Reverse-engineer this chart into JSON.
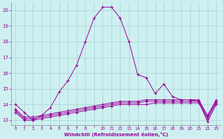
{
  "xlabel": "Windchill (Refroidissement éolien,°C)",
  "background_color": "#cff0f0",
  "grid_color": "#b0dede",
  "line_color": "#990099",
  "x_hours": [
    0,
    1,
    2,
    3,
    4,
    5,
    6,
    7,
    8,
    9,
    10,
    11,
    12,
    13,
    14,
    15,
    16,
    17,
    18,
    19,
    20,
    21,
    22,
    23
  ],
  "line1": [
    14.0,
    13.5,
    13.0,
    13.3,
    13.8,
    14.8,
    15.5,
    16.5,
    18.0,
    19.5,
    20.2,
    20.2,
    19.5,
    18.0,
    15.9,
    15.7,
    14.7,
    15.3,
    14.5,
    14.3,
    14.3,
    14.2,
    12.9,
    14.0
  ],
  "line2": [
    13.5,
    13.0,
    13.0,
    13.1,
    13.2,
    13.3,
    13.4,
    13.5,
    13.6,
    13.7,
    13.8,
    13.9,
    14.0,
    14.0,
    14.0,
    14.0,
    14.1,
    14.1,
    14.1,
    14.1,
    14.1,
    14.1,
    13.1,
    14.1
  ],
  "line3": [
    13.6,
    13.1,
    13.1,
    13.2,
    13.3,
    13.4,
    13.5,
    13.6,
    13.7,
    13.8,
    13.9,
    14.0,
    14.1,
    14.1,
    14.1,
    14.2,
    14.2,
    14.2,
    14.2,
    14.2,
    14.2,
    14.2,
    13.2,
    14.2
  ],
  "line4": [
    13.7,
    13.2,
    13.2,
    13.3,
    13.4,
    13.5,
    13.6,
    13.7,
    13.8,
    13.9,
    14.0,
    14.1,
    14.2,
    14.2,
    14.2,
    14.3,
    14.3,
    14.3,
    14.3,
    14.3,
    14.3,
    14.3,
    13.3,
    14.3
  ],
  "ylim": [
    12.7,
    20.5
  ],
  "yticks": [
    13,
    14,
    15,
    16,
    17,
    18,
    19,
    20
  ],
  "xticks": [
    0,
    1,
    2,
    3,
    4,
    5,
    6,
    7,
    8,
    9,
    10,
    11,
    12,
    13,
    14,
    15,
    16,
    17,
    18,
    19,
    20,
    21,
    22,
    23
  ],
  "xlabels": [
    "0",
    "1",
    "2",
    "3",
    "4",
    "5",
    "6",
    "7",
    "8",
    "",
    "10",
    "11",
    "12",
    "13",
    "14",
    "15",
    "16",
    "17",
    "18",
    "19",
    "20",
    "21",
    "22",
    "23"
  ]
}
